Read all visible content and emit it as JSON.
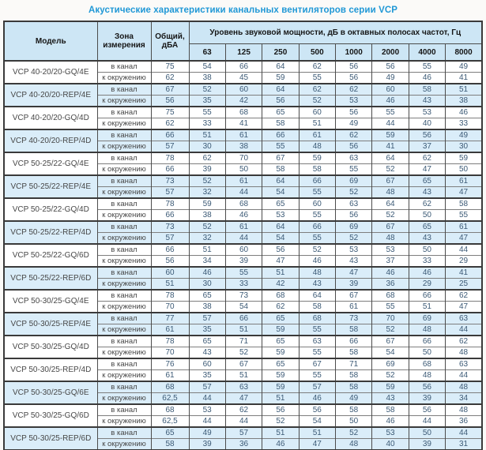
{
  "page_title": "Акустические характеристики канальных вентиляторов  серии VCP",
  "colors": {
    "title_text": "#2098d6",
    "header_bg": "#cde6f5",
    "stripe_bg": "#daedf9",
    "value_text": "#3c5a76"
  },
  "table": {
    "col_model": "Модель",
    "col_zone": "Зона измерения",
    "col_total": "Общий, дБА",
    "col_group": "Уровень звуковой мощности, дБ в октавных полосах частот, Гц",
    "frequencies": [
      "63",
      "125",
      "250",
      "500",
      "1000",
      "2000",
      "4000",
      "8000"
    ],
    "zone_labels": [
      "в канал",
      "к окружению"
    ],
    "groups": [
      {
        "model": "VCP 40-20/20-GQ/4E",
        "shaded": false,
        "rows": [
          {
            "total": "75",
            "bands": [
              "54",
              "66",
              "64",
              "62",
              "56",
              "56",
              "55",
              "49"
            ]
          },
          {
            "total": "62",
            "bands": [
              "38",
              "45",
              "59",
              "55",
              "56",
              "49",
              "46",
              "41"
            ]
          }
        ]
      },
      {
        "model": "VCP 40-20/20-REP/4E",
        "shaded": true,
        "rows": [
          {
            "total": "67",
            "bands": [
              "52",
              "60",
              "64",
              "62",
              "62",
              "60",
              "58",
              "51"
            ]
          },
          {
            "total": "56",
            "bands": [
              "35",
              "42",
              "56",
              "52",
              "53",
              "46",
              "43",
              "38"
            ]
          }
        ]
      },
      {
        "model": "VCP 40-20/20-GQ/4D",
        "shaded": false,
        "rows": [
          {
            "total": "75",
            "bands": [
              "55",
              "68",
              "65",
              "60",
              "56",
              "55",
              "53",
              "46"
            ]
          },
          {
            "total": "62",
            "bands": [
              "33",
              "41",
              "58",
              "51",
              "49",
              "44",
              "40",
              "33"
            ]
          }
        ]
      },
      {
        "model": "VCP 40-20/20-REP/4D",
        "shaded": true,
        "rows": [
          {
            "total": "66",
            "bands": [
              "51",
              "61",
              "66",
              "61",
              "62",
              "59",
              "56",
              "49"
            ]
          },
          {
            "total": "57",
            "bands": [
              "30",
              "38",
              "55",
              "48",
              "56",
              "41",
              "37",
              "30"
            ]
          }
        ]
      },
      {
        "model": "VCP 50-25/22-GQ/4E",
        "shaded": false,
        "rows": [
          {
            "total": "78",
            "bands": [
              "62",
              "70",
              "67",
              "59",
              "63",
              "64",
              "62",
              "59"
            ]
          },
          {
            "total": "66",
            "bands": [
              "39",
              "50",
              "58",
              "58",
              "55",
              "52",
              "47",
              "50"
            ]
          }
        ]
      },
      {
        "model": "VCP 50-25/22-REP/4E",
        "shaded": true,
        "rows": [
          {
            "total": "73",
            "bands": [
              "52",
              "61",
              "64",
              "66",
              "69",
              "67",
              "65",
              "61"
            ]
          },
          {
            "total": "57",
            "bands": [
              "32",
              "44",
              "54",
              "55",
              "52",
              "48",
              "43",
              "47"
            ]
          }
        ]
      },
      {
        "model": "VCP 50-25/22-GQ/4D",
        "shaded": false,
        "rows": [
          {
            "total": "78",
            "bands": [
              "59",
              "68",
              "65",
              "60",
              "63",
              "64",
              "62",
              "58"
            ]
          },
          {
            "total": "66",
            "bands": [
              "38",
              "46",
              "53",
              "55",
              "56",
              "52",
              "50",
              "55"
            ]
          }
        ]
      },
      {
        "model": "VCP 50-25/22-REP/4D",
        "shaded": true,
        "rows": [
          {
            "total": "73",
            "bands": [
              "52",
              "61",
              "64",
              "66",
              "69",
              "67",
              "65",
              "61"
            ]
          },
          {
            "total": "57",
            "bands": [
              "32",
              "44",
              "54",
              "55",
              "52",
              "48",
              "43",
              "47"
            ]
          }
        ]
      },
      {
        "model": "VCP 50-25/22-GQ/6D",
        "shaded": false,
        "rows": [
          {
            "total": "66",
            "bands": [
              "51",
              "60",
              "56",
              "52",
              "53",
              "53",
              "50",
              "44"
            ]
          },
          {
            "total": "56",
            "bands": [
              "34",
              "39",
              "47",
              "46",
              "43",
              "37",
              "33",
              "29"
            ]
          }
        ]
      },
      {
        "model": "VCP 50-25/22-REP/6D",
        "shaded": true,
        "rows": [
          {
            "total": "60",
            "bands": [
              "46",
              "55",
              "51",
              "48",
              "47",
              "46",
              "46",
              "41"
            ]
          },
          {
            "total": "51",
            "bands": [
              "30",
              "33",
              "42",
              "43",
              "39",
              "36",
              "29",
              "25"
            ]
          }
        ]
      },
      {
        "model": "VCP 50-30/25-GQ/4E",
        "shaded": false,
        "rows": [
          {
            "total": "78",
            "bands": [
              "65",
              "73",
              "68",
              "64",
              "67",
              "68",
              "66",
              "62"
            ]
          },
          {
            "total": "70",
            "bands": [
              "38",
              "54",
              "62",
              "58",
              "61",
              "55",
              "51",
              "47"
            ]
          }
        ]
      },
      {
        "model": "VCP 50-30/25-REP/4E",
        "shaded": true,
        "rows": [
          {
            "total": "77",
            "bands": [
              "57",
              "66",
              "65",
              "68",
              "73",
              "70",
              "69",
              "63"
            ]
          },
          {
            "total": "61",
            "bands": [
              "35",
              "51",
              "59",
              "55",
              "58",
              "52",
              "48",
              "44"
            ]
          }
        ]
      },
      {
        "model": "VCP 50-30/25-GQ/4D",
        "shaded": false,
        "rows": [
          {
            "total": "78",
            "bands": [
              "65",
              "71",
              "65",
              "63",
              "66",
              "67",
              "66",
              "62"
            ]
          },
          {
            "total": "70",
            "bands": [
              "43",
              "52",
              "59",
              "55",
              "58",
              "54",
              "50",
              "48"
            ]
          }
        ]
      },
      {
        "model": "VCP 50-30/25-REP/4D",
        "shaded": false,
        "rows": [
          {
            "total": "76",
            "bands": [
              "60",
              "67",
              "65",
              "67",
              "71",
              "69",
              "68",
              "63"
            ]
          },
          {
            "total": "61",
            "bands": [
              "35",
              "51",
              "59",
              "55",
              "58",
              "52",
              "48",
              "44"
            ]
          }
        ]
      },
      {
        "model": "VCP 50-30/25-GQ/6E",
        "shaded": true,
        "rows": [
          {
            "total": "68",
            "bands": [
              "57",
              "63",
              "59",
              "57",
              "58",
              "59",
              "56",
              "48"
            ]
          },
          {
            "total": "62,5",
            "bands": [
              "44",
              "47",
              "51",
              "46",
              "49",
              "43",
              "39",
              "34"
            ]
          }
        ]
      },
      {
        "model": "VCP 50-30/25-GQ/6D",
        "shaded": false,
        "rows": [
          {
            "total": "68",
            "bands": [
              "53",
              "62",
              "56",
              "56",
              "58",
              "58",
              "56",
              "48"
            ]
          },
          {
            "total": "62,5",
            "bands": [
              "44",
              "44",
              "52",
              "54",
              "50",
              "46",
              "44",
              "36"
            ]
          }
        ]
      },
      {
        "model": "VCP 50-30/25-REP/6D",
        "shaded": true,
        "rows": [
          {
            "total": "65",
            "bands": [
              "49",
              "57",
              "51",
              "51",
              "52",
              "53",
              "50",
              "44"
            ]
          },
          {
            "total": "58",
            "bands": [
              "39",
              "36",
              "46",
              "47",
              "48",
              "40",
              "39",
              "31"
            ]
          }
        ]
      }
    ]
  }
}
